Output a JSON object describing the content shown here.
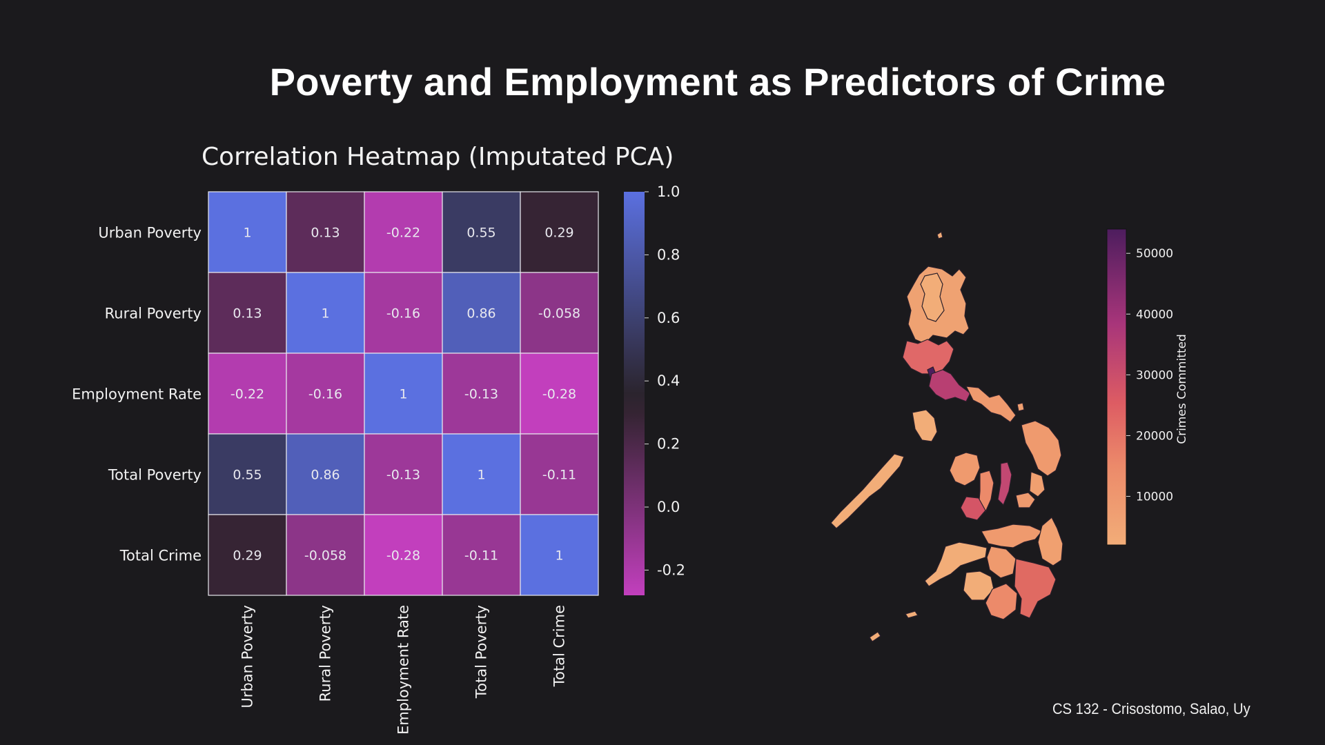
{
  "page": {
    "title": "Poverty and Employment as Predictors of Crime",
    "footer": "CS 132 - Crisostomo, Salao, Uy"
  },
  "colors": {
    "background": "#1b1a1d",
    "heatmap_low": "#c23fbd",
    "heatmap_mid": "#2a2228",
    "heatmap_high": "#5b70e0",
    "map_low": "#f0a070",
    "map_mid": "#e06060",
    "map_high": "#4a1f5c"
  },
  "chart_data": [
    {
      "type": "heatmap",
      "title": "Correlation Heatmap (Imputated PCA)",
      "rows": [
        "Urban Poverty",
        "Rural Poverty",
        "Employment Rate",
        "Total Poverty",
        "Total Crime"
      ],
      "columns": [
        "Urban Poverty",
        "Rural Poverty",
        "Employment Rate",
        "Total Poverty",
        "Total Crime"
      ],
      "values": [
        [
          1,
          0.13,
          -0.22,
          0.55,
          0.29
        ],
        [
          0.13,
          1,
          -0.16,
          0.86,
          -0.058
        ],
        [
          -0.22,
          -0.16,
          1,
          -0.13,
          -0.28
        ],
        [
          0.55,
          0.86,
          -0.13,
          1,
          -0.11
        ],
        [
          0.29,
          -0.058,
          -0.28,
          -0.11,
          1
        ]
      ],
      "labels": [
        [
          "1",
          "0.13",
          "-0.22",
          "0.55",
          "0.29"
        ],
        [
          "0.13",
          "1",
          "-0.16",
          "0.86",
          "-0.058"
        ],
        [
          "-0.22",
          "-0.16",
          "1",
          "-0.13",
          "-0.28"
        ],
        [
          "0.55",
          "0.86",
          "-0.13",
          "1",
          "-0.11"
        ],
        [
          "0.29",
          "-0.058",
          "-0.28",
          "-0.11",
          "1"
        ]
      ],
      "colorbar": {
        "range": [
          -0.28,
          1
        ],
        "ticks": [
          1.0,
          0.8,
          0.6,
          0.4,
          0.2,
          0.0,
          -0.2
        ],
        "tick_labels": [
          "1.0",
          "0.8",
          "0.6",
          "0.4",
          "0.2",
          "0.0",
          "-0.2"
        ]
      }
    },
    {
      "type": "choropleth",
      "title": "",
      "region": "Philippines",
      "colorbar": {
        "label": "Crimes Committed",
        "range": [
          2000,
          54000
        ],
        "ticks": [
          50000,
          40000,
          30000,
          20000,
          10000
        ],
        "tick_labels": [
          "50000",
          "40000",
          "30000",
          "20000",
          "10000"
        ]
      }
    }
  ]
}
